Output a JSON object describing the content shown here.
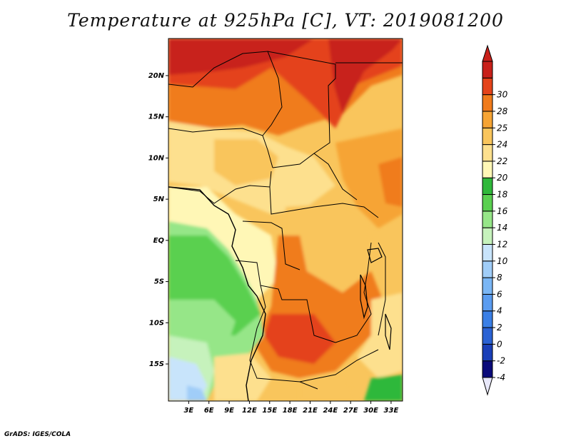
{
  "title": "Temperature at 925hPa [C], VT: 2019081200",
  "footer": "GrADS: IGES/COLA",
  "map": {
    "lon_range": [
      0,
      34.7
    ],
    "lat_range": [
      -19.5,
      24.5
    ],
    "lat_ticks": [
      {
        "value": 20,
        "label": "20N"
      },
      {
        "value": 15,
        "label": "15N"
      },
      {
        "value": 10,
        "label": "10N"
      },
      {
        "value": 5,
        "label": "5N"
      },
      {
        "value": 0,
        "label": "EQ"
      },
      {
        "value": -5,
        "label": "5S"
      },
      {
        "value": -10,
        "label": "10S"
      },
      {
        "value": -15,
        "label": "15S"
      }
    ],
    "lon_ticks": [
      {
        "value": 3,
        "label": "3E"
      },
      {
        "value": 6,
        "label": "6E"
      },
      {
        "value": 9,
        "label": "9E"
      },
      {
        "value": 12,
        "label": "12E"
      },
      {
        "value": 15,
        "label": "15E"
      },
      {
        "value": 18,
        "label": "18E"
      },
      {
        "value": 21,
        "label": "21E"
      },
      {
        "value": 24,
        "label": "24E"
      },
      {
        "value": 27,
        "label": "27E"
      },
      {
        "value": 30,
        "label": "30E"
      },
      {
        "value": 33,
        "label": "33E"
      }
    ]
  },
  "colorbar": {
    "levels": [
      "-4",
      "-2",
      "0",
      "2",
      "4",
      "6",
      "8",
      "10",
      "12",
      "14",
      "16",
      "18",
      "20",
      "22",
      "24",
      "25",
      "28",
      "30"
    ],
    "colors": [
      "#0a0a7a",
      "#1a3fb8",
      "#2a62d4",
      "#3a7fe6",
      "#5a9cf0",
      "#7ab6f5",
      "#a0cdf8",
      "#c8e4fb",
      "#c6f2bc",
      "#96e688",
      "#5ad050",
      "#2fb83a",
      "#fff7b6",
      "#fde08e",
      "#f9c55c",
      "#f6a434",
      "#f07b1c",
      "#e4431a",
      "#c8201a"
    ],
    "under_color": "#e8e8fa",
    "over_color": "#c8201a"
  }
}
